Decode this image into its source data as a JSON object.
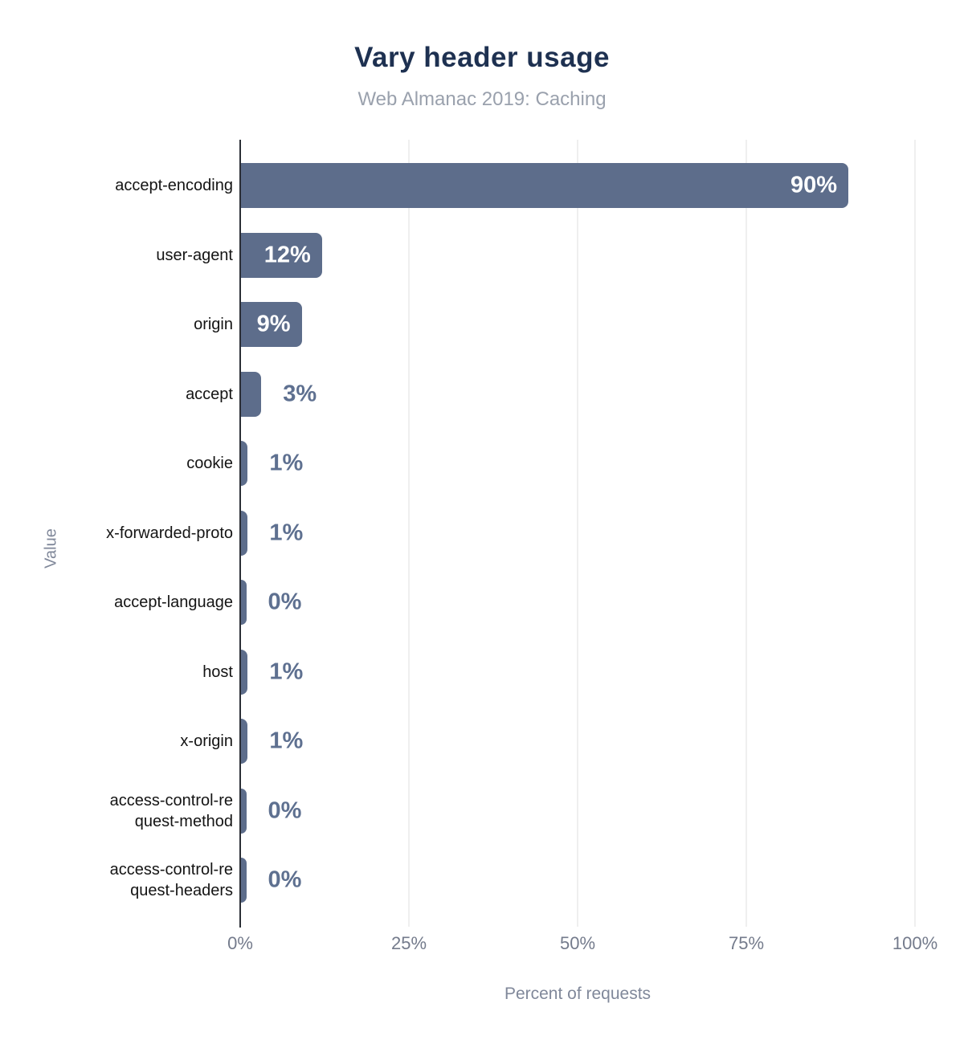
{
  "chart_data": {
    "type": "bar",
    "orientation": "horizontal",
    "title": "Vary header usage",
    "subtitle": "Web Almanac 2019: Caching",
    "xlabel": "Percent of requests",
    "ylabel": "Value",
    "xlim": [
      0,
      100
    ],
    "grid": true,
    "legend": "none",
    "xticks": [
      {
        "label": "0%",
        "value": 0
      },
      {
        "label": "25%",
        "value": 25
      },
      {
        "label": "50%",
        "value": 50
      },
      {
        "label": "75%",
        "value": 75
      },
      {
        "label": "100%",
        "value": 100
      }
    ],
    "categories": [
      "accept-encoding",
      "user-agent",
      "origin",
      "accept",
      "cookie",
      "x-forwarded-proto",
      "accept-language",
      "host",
      "x-origin",
      "access-control-re\nquest-method",
      "access-control-re\nquest-headers"
    ],
    "values": [
      90,
      12,
      9,
      3,
      1,
      1,
      0,
      1,
      1,
      0,
      0
    ],
    "value_labels": [
      "90%",
      "12%",
      "9%",
      "3%",
      "1%",
      "1%",
      "0%",
      "1%",
      "1%",
      "0%",
      "0%"
    ],
    "colors": {
      "bar": "#5d6d8b",
      "bar_label_inside": "#ffffff",
      "bar_label_outside": "#5e7090",
      "title": "#1e3151",
      "subtitle": "#9aa1ad",
      "category_label": "#141414",
      "tick_label": "#747b8c",
      "axis_title": "#80889a",
      "gridline": "#efefef",
      "axis_line": "#2b2f36",
      "background": "#ffffff"
    }
  }
}
